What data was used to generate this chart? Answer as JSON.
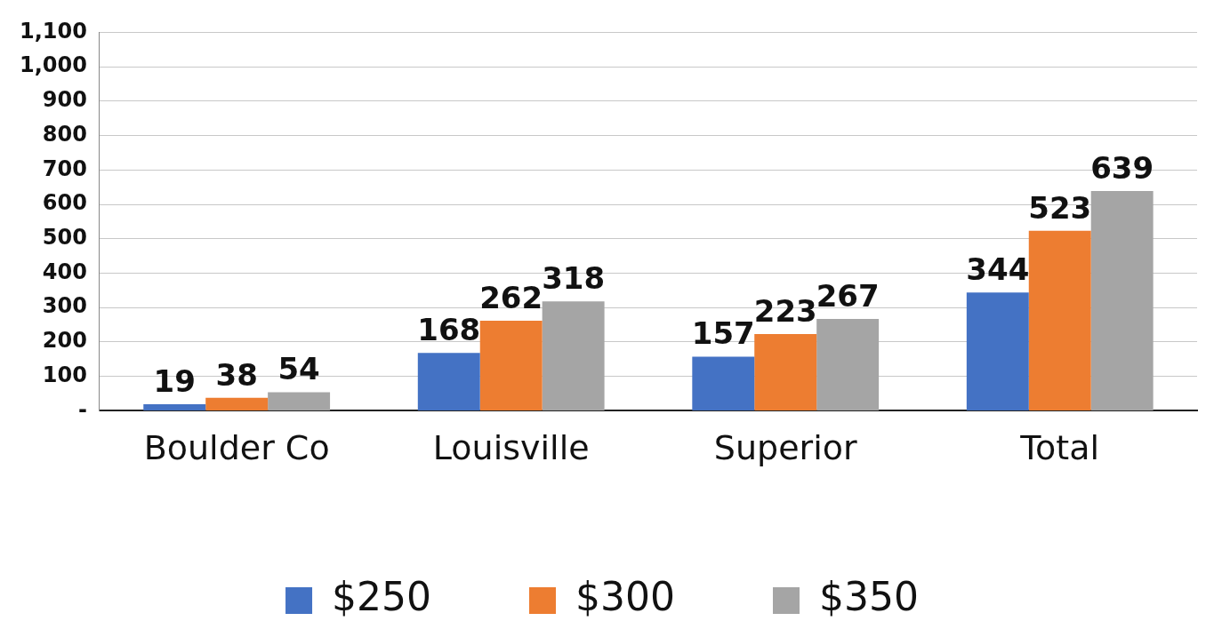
{
  "chart_data": {
    "type": "bar",
    "categories": [
      "Boulder Co",
      "Louisville",
      "Superior",
      "Total"
    ],
    "series": [
      {
        "name": "$250",
        "color": "#4472c4",
        "values": [
          19,
          168,
          157,
          344
        ]
      },
      {
        "name": "$300",
        "color": "#ed7d31",
        "values": [
          38,
          262,
          223,
          523
        ]
      },
      {
        "name": "$350",
        "color": "#a5a5a5",
        "values": [
          54,
          318,
          267,
          639
        ]
      }
    ],
    "ylim": [
      0,
      1100
    ],
    "yticks": [
      {
        "value": 0,
        "label": "-"
      },
      100,
      200,
      300,
      400,
      500,
      600,
      700,
      800,
      900,
      {
        "value": 1000,
        "label": "1,000"
      },
      {
        "value": 1100,
        "label": "1,100"
      }
    ],
    "grid": "y",
    "legend": "bottom",
    "data_labels": true
  }
}
